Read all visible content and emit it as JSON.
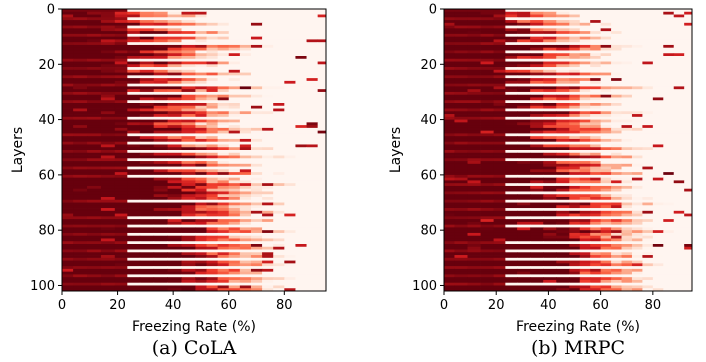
{
  "chart_data": [
    {
      "type": "heatmap",
      "caption": "(a) CoLA",
      "xlabel": "Freezing Rate (%)",
      "ylabel": "Layers",
      "xlim": [
        0,
        95
      ],
      "ylim": [
        102,
        0
      ],
      "x_ticks": [
        0,
        20,
        40,
        60,
        80
      ],
      "y_ticks": [
        0,
        20,
        40,
        60,
        80,
        100
      ],
      "colormap": "Reds",
      "seed": 11,
      "rows": 102,
      "frozen_upto_pct": [
        23.5,
        28,
        33,
        36,
        28,
        40,
        24,
        28,
        46,
        38,
        42,
        30,
        25,
        55,
        46,
        34,
        44,
        38,
        52,
        48,
        36,
        44,
        30,
        50,
        60,
        44,
        38,
        48,
        56,
        40,
        46,
        52,
        42,
        58,
        48,
        42,
        36,
        54,
        46,
        58,
        50,
        40,
        44,
        54,
        48,
        58,
        42,
        50,
        56,
        44,
        58,
        48,
        46,
        60,
        52,
        44,
        56,
        50,
        46,
        60,
        54,
        50,
        48,
        62,
        54,
        50,
        60,
        52,
        56,
        48,
        62,
        54,
        50,
        60,
        56,
        52,
        62,
        54,
        50,
        58,
        62,
        54,
        56,
        60,
        52,
        58,
        62,
        56,
        54,
        60,
        58,
        56,
        62,
        58,
        60,
        56,
        62,
        60,
        58,
        62,
        60,
        62
      ]
    },
    {
      "type": "heatmap",
      "caption": "(b) MRPC",
      "xlabel": "Freezing Rate (%)",
      "ylabel": "Layers",
      "xlim": [
        0,
        95
      ],
      "ylim": [
        102,
        0
      ],
      "x_ticks": [
        0,
        20,
        40,
        60,
        80
      ],
      "y_ticks": [
        0,
        20,
        40,
        60,
        80,
        100
      ],
      "colormap": "Reds",
      "seed": 29,
      "rows": 102,
      "frozen_upto_pct": [
        23.5,
        30,
        34,
        38,
        32,
        42,
        28,
        34,
        48,
        40,
        44,
        36,
        30,
        56,
        48,
        38,
        46,
        40,
        54,
        50,
        38,
        46,
        34,
        52,
        62,
        46,
        40,
        50,
        58,
        42,
        48,
        54,
        44,
        60,
        50,
        44,
        38,
        56,
        48,
        60,
        52,
        42,
        46,
        56,
        50,
        60,
        44,
        52,
        58,
        46,
        60,
        50,
        48,
        62,
        54,
        46,
        58,
        52,
        48,
        62,
        56,
        52,
        50,
        64,
        56,
        52,
        62,
        54,
        58,
        50,
        64,
        56,
        52,
        62,
        58,
        54,
        64,
        56,
        52,
        60,
        64,
        56,
        58,
        62,
        54,
        60,
        64,
        58,
        56,
        62,
        60,
        58,
        64,
        60,
        62,
        58,
        64,
        62,
        60,
        64,
        62,
        64
      ]
    }
  ]
}
